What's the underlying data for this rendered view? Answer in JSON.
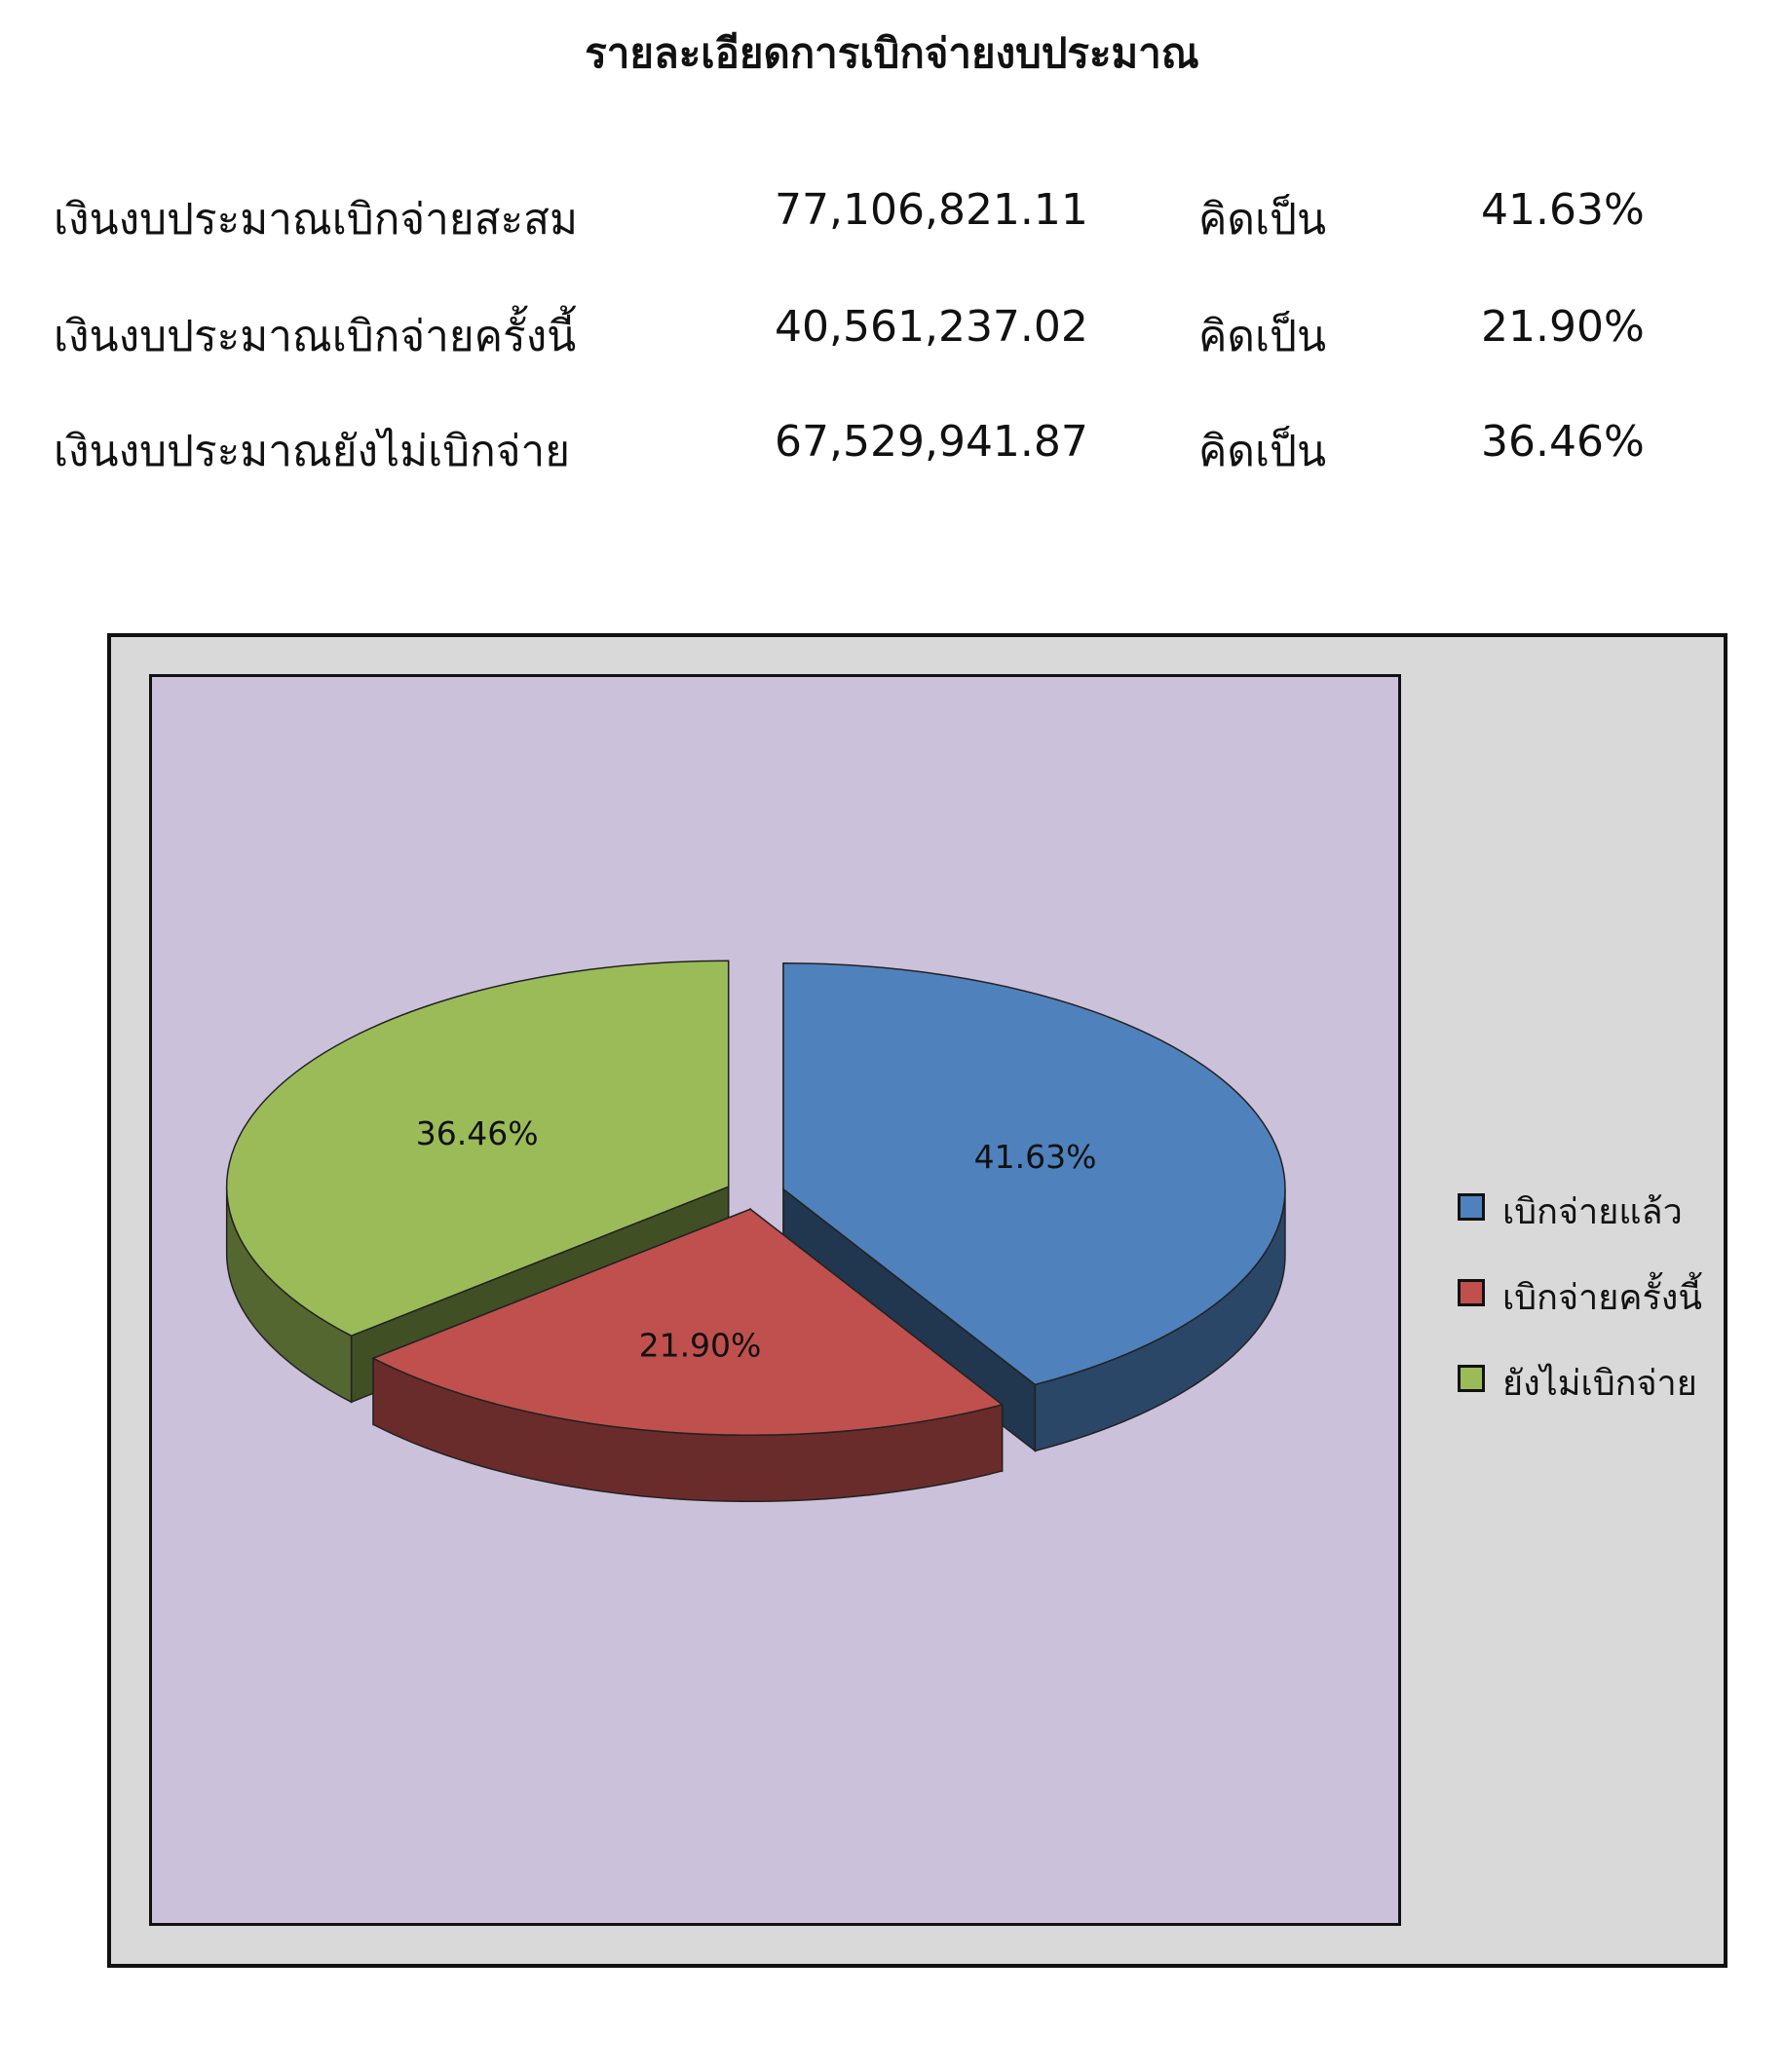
{
  "title": "รายละเอียดการเบิกจ่ายงบประมาณ",
  "summary": [
    {
      "label": "เงินงบประมาณเบิกจ่ายสะสม",
      "amount": "77,106,821.11",
      "word": "คิดเป็น",
      "percent": "41.63%"
    },
    {
      "label": "เงินงบประมาณเบิกจ่ายครั้งนี้",
      "amount": "40,561,237.02",
      "word": "คิดเป็น",
      "percent": "21.90%"
    },
    {
      "label": "เงินงบประมาณยังไม่เบิกจ่าย",
      "amount": "67,529,941.87",
      "word": "คิดเป็น",
      "percent": "36.46%"
    }
  ],
  "chart_data": {
    "type": "pie",
    "style": "3D exploded pie",
    "legend_position": "right",
    "categories": [
      "เบิกจ่ายแล้ว",
      "เบิกจ่ายครั้งนี้",
      "ยังไม่เบิกจ่าย"
    ],
    "values": [
      41.63,
      21.9,
      36.46
    ],
    "data_labels": [
      "41.63%",
      "21.90%",
      "36.46%"
    ],
    "colors": [
      "#4f81bd",
      "#c0504d",
      "#9bbb59"
    ],
    "plot_background": "#ccc1da",
    "chart_background": "#d9d9d9"
  }
}
